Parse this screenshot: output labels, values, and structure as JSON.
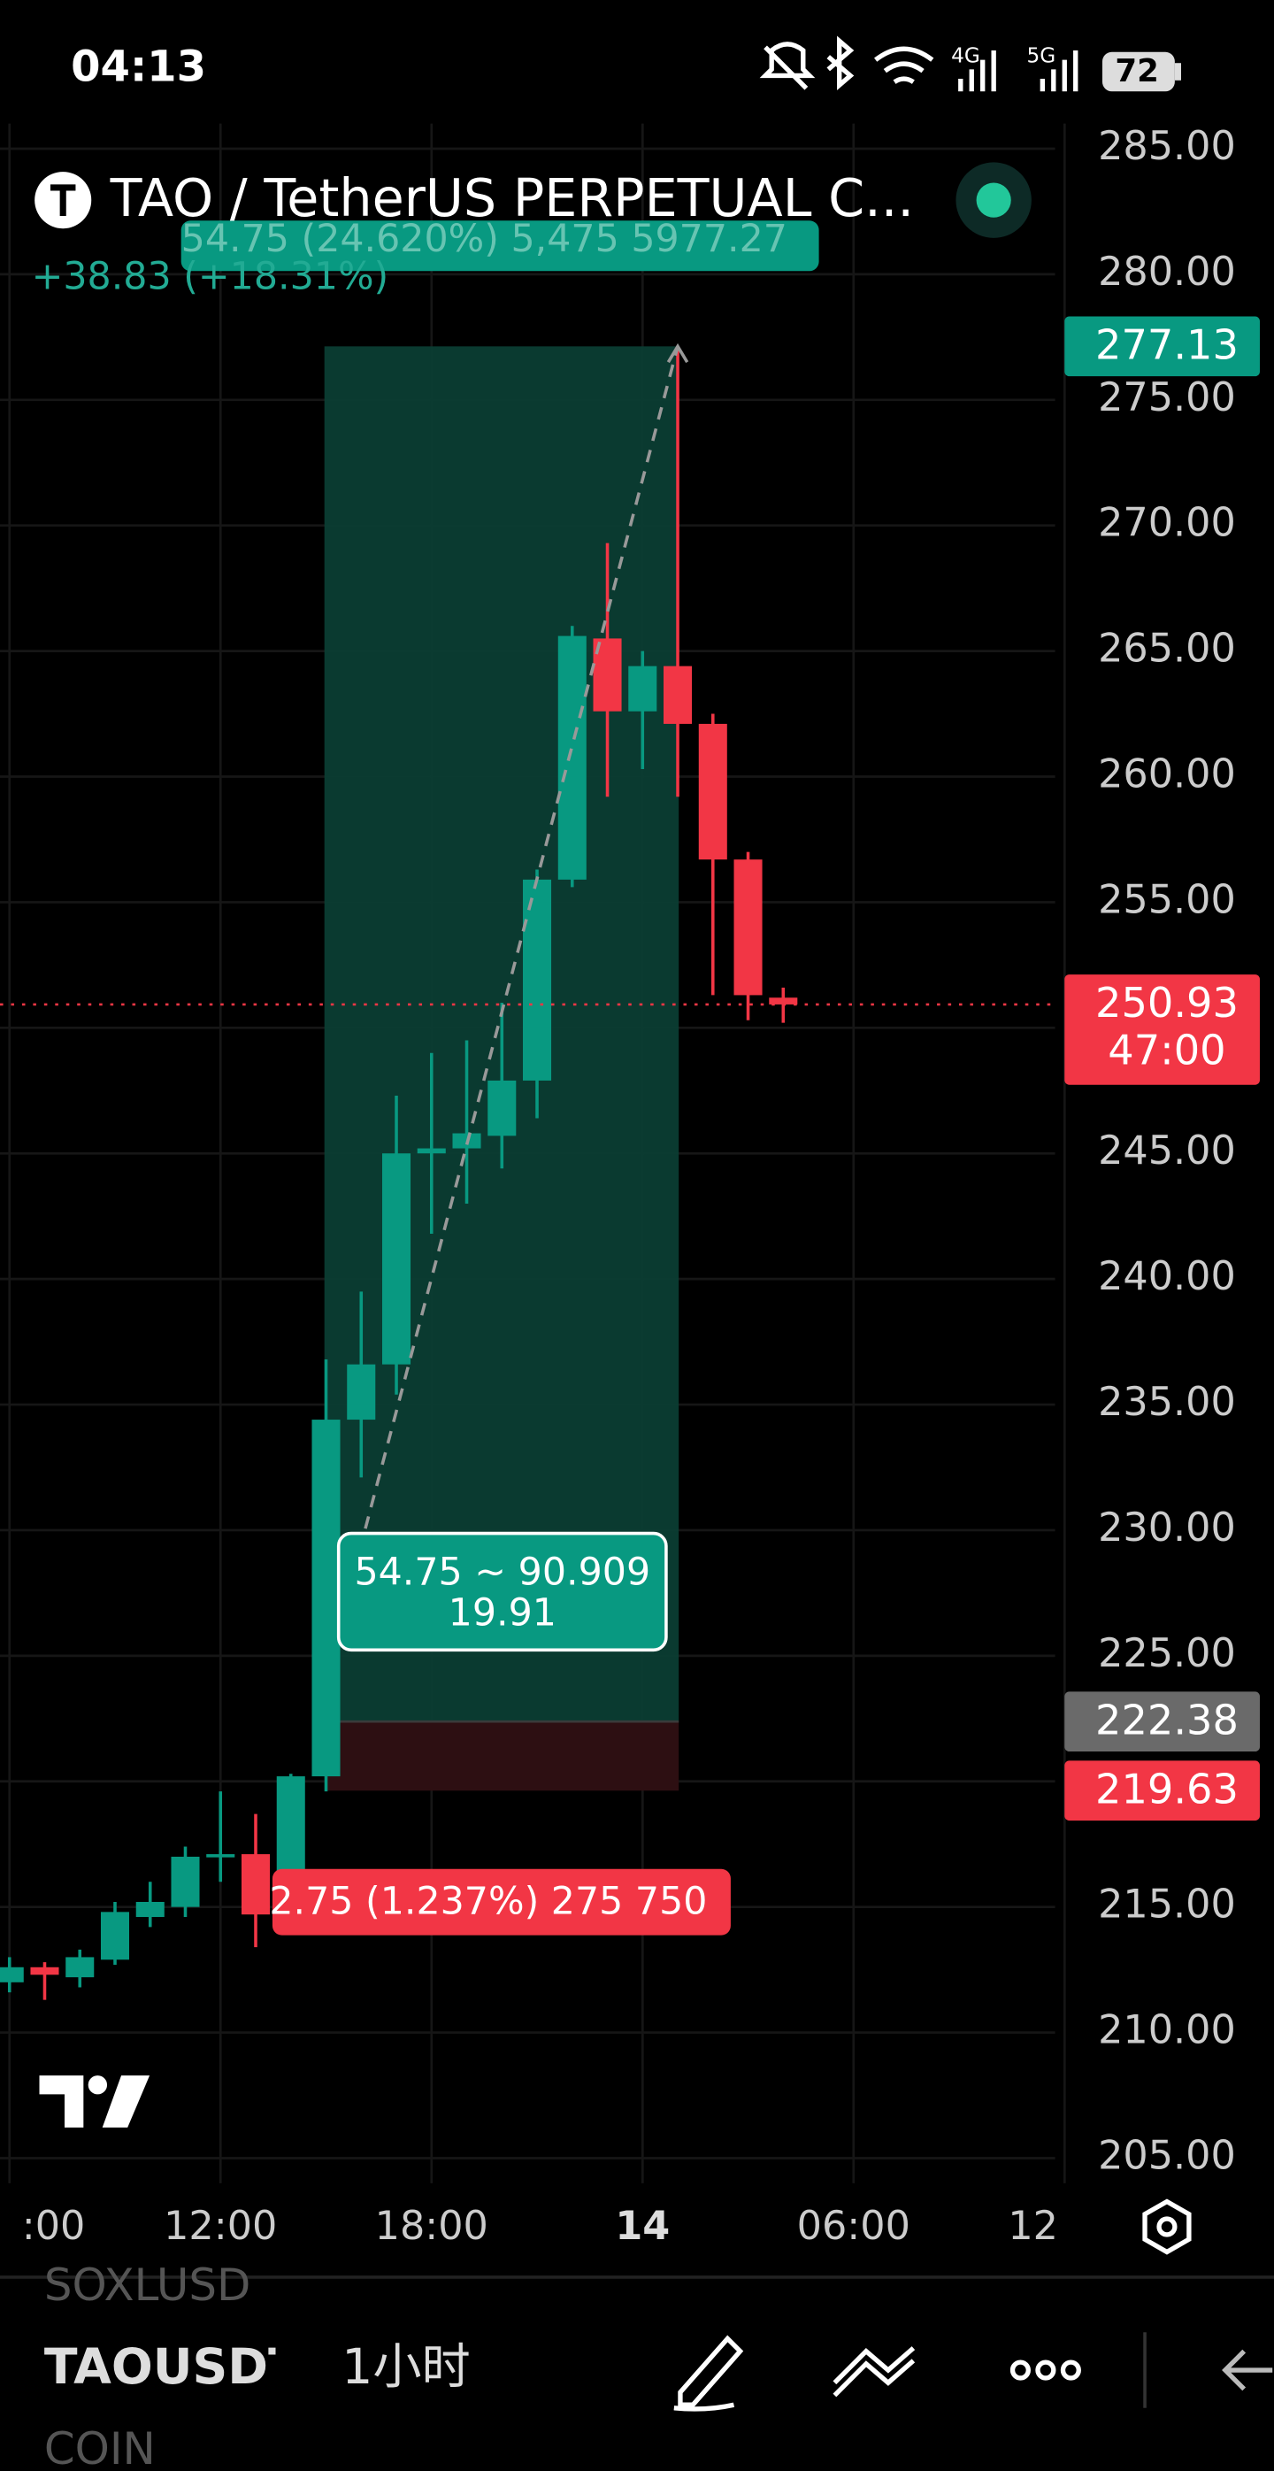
{
  "status_bar": {
    "time": "04:13",
    "battery": "72"
  },
  "header": {
    "symbol": "TAO / TetherUS PERPETUAL C...",
    "change": "+38.83 (+18.31%)"
  },
  "chart_data": {
    "type": "candlestick",
    "x": [
      6,
      7,
      8,
      9,
      10,
      11,
      12,
      13,
      14,
      15,
      16,
      17,
      18,
      19,
      20,
      21,
      22,
      23,
      24,
      25,
      26,
      27,
      28
    ],
    "open": [
      212.0,
      212.6,
      212.2,
      212.9,
      214.6,
      215.0,
      217.0,
      217.1,
      214.8,
      220.2,
      234.4,
      236.6,
      245.0,
      245.2,
      245.7,
      247.9,
      255.9,
      265.5,
      262.6,
      264.4,
      262.1,
      256.7,
      251.2
    ],
    "high": [
      213.0,
      212.8,
      213.3,
      215.2,
      216.0,
      217.4,
      219.6,
      218.7,
      220.3,
      236.8,
      239.5,
      247.3,
      249.0,
      249.5,
      251.0,
      256.3,
      266.0,
      269.3,
      265.0,
      277.13,
      262.5,
      257.0,
      251.6
    ],
    "low": [
      211.6,
      211.3,
      211.8,
      212.7,
      214.2,
      214.6,
      216.0,
      213.4,
      214.5,
      219.6,
      232.1,
      235.4,
      241.8,
      243.0,
      244.4,
      246.4,
      255.6,
      259.2,
      260.3,
      259.2,
      251.3,
      250.3,
      250.2
    ],
    "close": [
      212.6,
      212.3,
      213.0,
      214.8,
      215.2,
      217.0,
      217.1,
      214.7,
      220.2,
      234.4,
      236.6,
      245.0,
      245.2,
      245.8,
      247.9,
      255.9,
      265.6,
      262.6,
      264.4,
      262.1,
      256.7,
      251.3,
      250.93
    ],
    "up_color": "#089981",
    "down_color": "#f23645",
    "xlim": [
      5.73,
      35.73
    ],
    "xticks": [
      {
        "value": 6,
        "label": ":00"
      },
      {
        "value": 12,
        "label": "12:00"
      },
      {
        "value": 18,
        "label": "18:00"
      },
      {
        "value": 24,
        "label": "14"
      },
      {
        "value": 30,
        "label": "06:00"
      },
      {
        "value": 36,
        "label": "12"
      }
    ],
    "ylim": [
      204,
      286
    ],
    "yticks": [
      {
        "value": 285,
        "label": "285.00"
      },
      {
        "value": 280,
        "label": "280.00"
      },
      {
        "value": 275,
        "label": "275.00"
      },
      {
        "value": 270,
        "label": "270.00"
      },
      {
        "value": 265,
        "label": "265.00"
      },
      {
        "value": 260,
        "label": "260.00"
      },
      {
        "value": 255,
        "label": "255.00"
      },
      {
        "value": 250,
        "label": "250.00"
      },
      {
        "value": 245,
        "label": "245.00"
      },
      {
        "value": 240,
        "label": "240.00"
      },
      {
        "value": 235,
        "label": "235.00"
      },
      {
        "value": 230,
        "label": "230.00"
      },
      {
        "value": 225,
        "label": "225.00"
      },
      {
        "value": 220,
        "label": "220.00"
      },
      {
        "value": 215,
        "label": "215.00"
      },
      {
        "value": 210,
        "label": "210.00"
      },
      {
        "value": 205,
        "label": "205.00"
      }
    ],
    "grid": true,
    "last_price": {
      "value": 250.93,
      "label": "250.93",
      "countdown": "47:00"
    },
    "position": {
      "target": {
        "value": 277.13,
        "label": "277.13"
      },
      "entry": {
        "value": 222.38,
        "label": "222.38"
      },
      "stop": {
        "value": 219.63,
        "label": "219.63"
      },
      "profit_label": "54.75 (24.620%) 5,475 5977.27",
      "loss_label": "2.75 (1.237%) 275 750",
      "info_line_1": "54.75 ~ 90.909",
      "info_line_2": "19.91"
    }
  },
  "toolbar": {
    "symbol_above": "SOXLUSD",
    "symbol": "TAOUSDT",
    "interval": "1小时",
    "symbol_below": "COIN"
  }
}
